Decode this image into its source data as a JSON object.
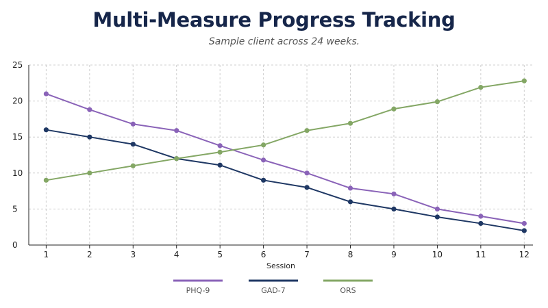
{
  "title": "Multi-Measure Progress Tracking",
  "subtitle": "Sample client across 24 weeks.",
  "chart_data": {
    "type": "line",
    "title": "Multi-Measure Progress Tracking",
    "subtitle": "Sample client across 24 weeks.",
    "xlabel": "Session",
    "ylabel": "",
    "x": [
      1,
      2,
      3,
      4,
      5,
      6,
      7,
      8,
      9,
      10,
      11,
      12
    ],
    "xlim": [
      0.6,
      12.2
    ],
    "ylim": [
      0,
      25
    ],
    "yticks": [
      0,
      5,
      10,
      15,
      20,
      25
    ],
    "grid": true,
    "legend_position": "bottom",
    "series": [
      {
        "name": "PHQ-9",
        "color": "#8a63b8",
        "values": [
          21,
          18.8,
          16.8,
          15.9,
          13.8,
          11.8,
          10,
          7.9,
          7.1,
          5,
          4,
          3
        ]
      },
      {
        "name": "GAD-7",
        "color": "#1f3864",
        "values": [
          16,
          15,
          14,
          12,
          11.1,
          9,
          8,
          6,
          5,
          3.9,
          3,
          2
        ]
      },
      {
        "name": "ORS",
        "color": "#84a765",
        "values": [
          9,
          10,
          11,
          12,
          12.9,
          13.9,
          15.9,
          16.9,
          18.9,
          19.9,
          21.9,
          22.8
        ]
      }
    ]
  }
}
